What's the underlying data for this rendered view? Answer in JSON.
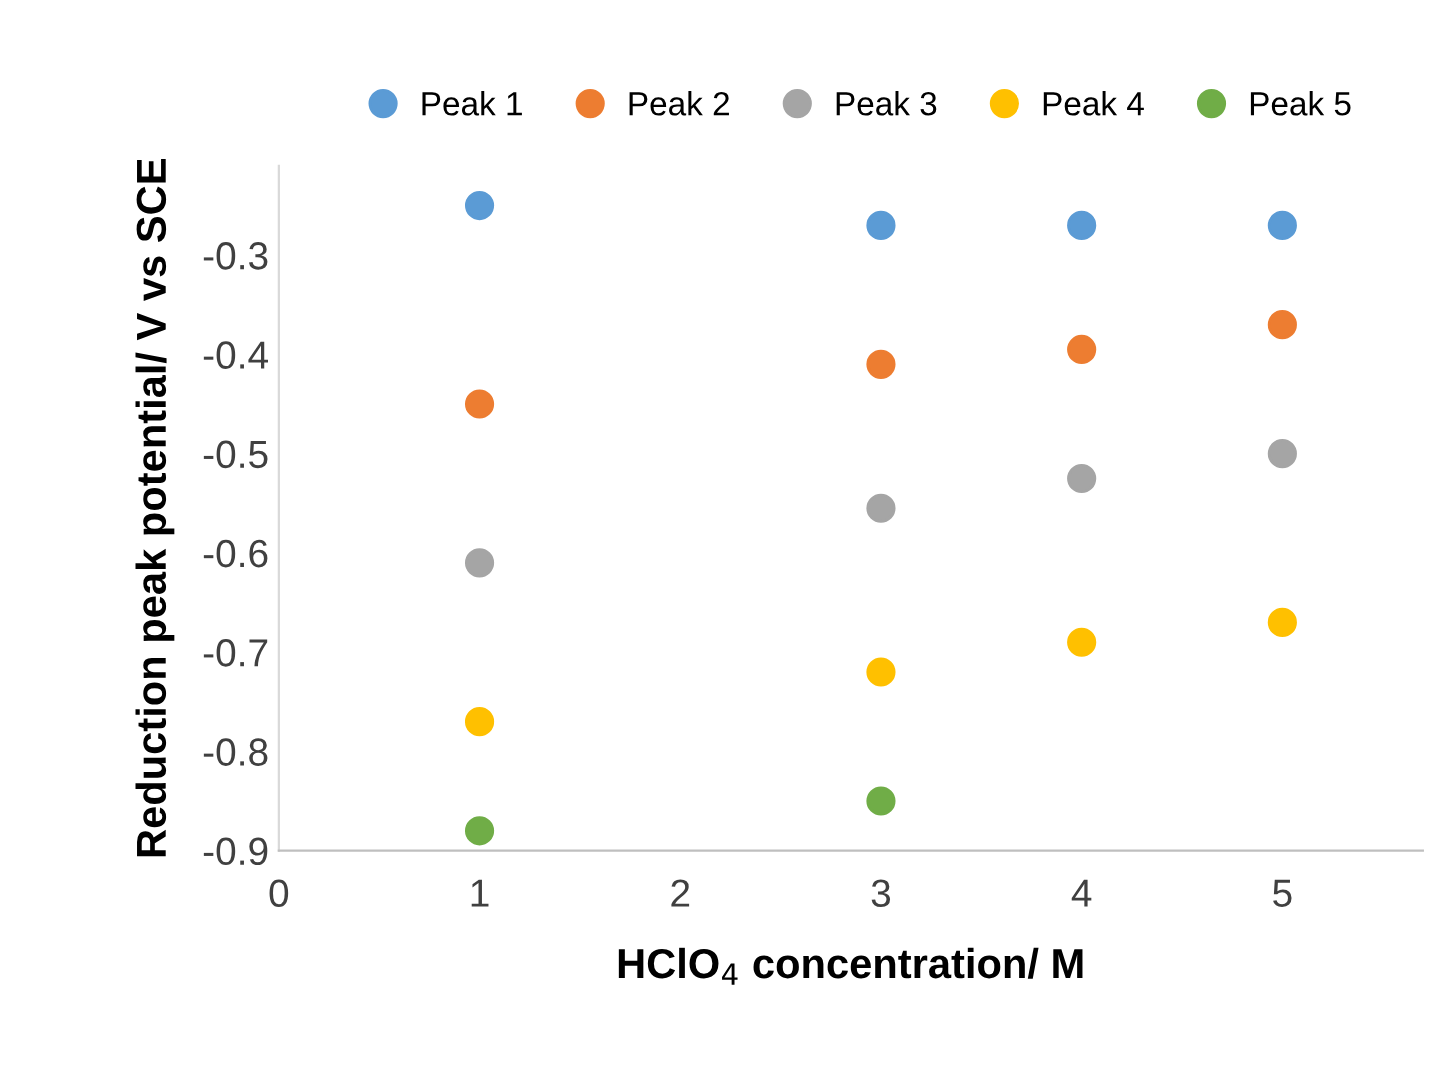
{
  "chart_data": {
    "type": "scatter",
    "xlabel": "HClO$_{4}$ concentration/ M",
    "ylabel": "Reduction peak potential/ V vs SCE",
    "xlim": [
      0,
      5.7
    ],
    "xticks": [
      0,
      1,
      2,
      3,
      4,
      5
    ],
    "ylim": [
      -0.9,
      -0.21
    ],
    "yticks": [
      -0.9,
      -0.8,
      -0.7,
      -0.6,
      -0.5,
      -0.4,
      -0.3
    ],
    "legend": "top",
    "grid": false,
    "marker": "circle",
    "series": [
      {
        "name": "Peak 1",
        "color": "#5b9bd5",
        "x": [
          1,
          3,
          4,
          5
        ],
        "values": [
          -0.25,
          -0.27,
          -0.27,
          -0.27
        ]
      },
      {
        "name": "Peak 2",
        "color": "#ed7d31",
        "x": [
          1,
          3,
          4,
          5
        ],
        "values": [
          -0.45,
          -0.41,
          -0.395,
          -0.37
        ]
      },
      {
        "name": "Peak 3",
        "color": "#a5a5a5",
        "x": [
          1,
          3,
          4,
          5
        ],
        "values": [
          -0.61,
          -0.555,
          -0.525,
          -0.5
        ]
      },
      {
        "name": "Peak 4",
        "color": "#ffc000",
        "x": [
          1,
          3,
          4,
          5
        ],
        "values": [
          -0.77,
          -0.72,
          -0.69,
          -0.67
        ]
      },
      {
        "name": "Peak 5",
        "color": "#70ad47",
        "x": [
          1,
          3
        ],
        "values": [
          -0.88,
          -0.85
        ]
      }
    ]
  }
}
